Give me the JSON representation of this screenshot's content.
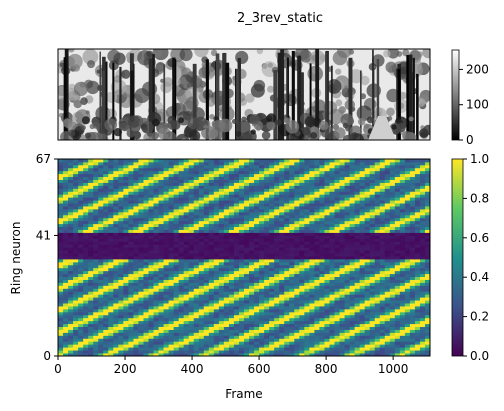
{
  "figure_title": "2_3rev_static",
  "image_panel": {
    "description": "grayscale panoramic forest scene",
    "colorbar": {
      "ticks": [
        0,
        100,
        200
      ],
      "range": [
        0,
        255
      ],
      "colormap": "gray"
    }
  },
  "chart_data": [
    {
      "type": "heatmap",
      "title": "",
      "xlabel": "Frame",
      "ylabel": "Ring neuron",
      "xlim": [
        0,
        1110
      ],
      "ylim": [
        0,
        67
      ],
      "xticks": [
        0,
        200,
        400,
        600,
        800,
        1000
      ],
      "yticks": [
        0,
        41,
        67
      ],
      "colormap": "viridis",
      "colorbar": {
        "range": [
          0.0,
          1.0
        ],
        "ticks": [
          0.0,
          0.2,
          0.4,
          0.6,
          0.8,
          1.0
        ]
      },
      "bands": [
        {
          "neurons": [
            0,
            32
          ],
          "pattern": "diagonal stripes rising with frame, period approx 390 frames"
        },
        {
          "neurons": [
            33,
            41
          ],
          "pattern": "near zero activity"
        },
        {
          "neurons": [
            42,
            66
          ],
          "pattern": "diagonal stripes rising with frame, period approx 390 frames"
        }
      ]
    }
  ],
  "colors": {
    "background": "#ffffff",
    "axis": "#000000",
    "viridis_low": "#440154",
    "viridis_high": "#fde725"
  }
}
